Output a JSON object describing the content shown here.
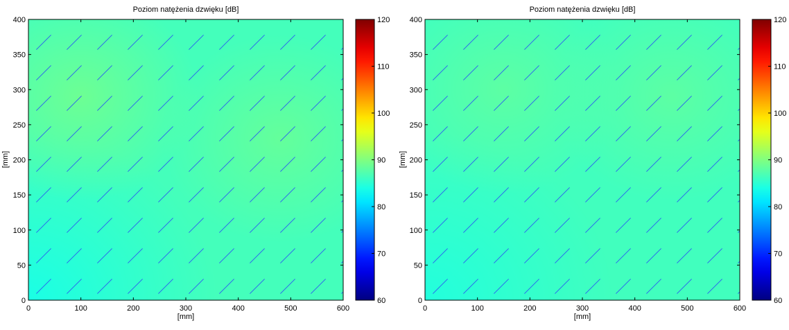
{
  "chart_data": [
    {
      "type": "heatmap",
      "title": "Poziom natężenia dzwięku [dB]",
      "xlabel": "[mm]",
      "ylabel": "[mm]",
      "xlim": [
        0,
        600
      ],
      "ylim": [
        0,
        400
      ],
      "xticks": [
        "0",
        "100",
        "200",
        "300",
        "400",
        "500",
        "600"
      ],
      "yticks": [
        "0",
        "50",
        "100",
        "150",
        "200",
        "250",
        "300",
        "350",
        "400"
      ],
      "colorbar": {
        "range": [
          60,
          120
        ],
        "ticks": [
          "60",
          "70",
          "80",
          "90",
          "100",
          "110",
          "120"
        ],
        "colormap": "jet"
      },
      "field": {
        "base_db": 86.5,
        "hotspots": [
          {
            "x": 100,
            "y": 290,
            "db": 89
          },
          {
            "x": 480,
            "y": 230,
            "db": 88.5
          }
        ],
        "corner_db": 84
      },
      "vectors": {
        "spacing_x": 44,
        "spacing_y": 44,
        "angle_deg": 45,
        "length": 30,
        "color": "#2b5ef0"
      }
    },
    {
      "type": "heatmap",
      "title": "Poziom natężenia dzwięku [dB]",
      "xlabel": "[mm]",
      "ylabel": "[mm]",
      "xlim": [
        0,
        600
      ],
      "ylim": [
        0,
        400
      ],
      "xticks": [
        "0",
        "100",
        "200",
        "300",
        "400",
        "500",
        "600"
      ],
      "yticks": [
        "0",
        "50",
        "100",
        "150",
        "200",
        "250",
        "300",
        "350",
        "400"
      ],
      "colorbar": {
        "range": [
          60,
          120
        ],
        "ticks": [
          "60",
          "70",
          "80",
          "90",
          "100",
          "110",
          "120"
        ],
        "colormap": "jet"
      },
      "field": {
        "base_db": 86.3,
        "hotspots": [
          {
            "x": 150,
            "y": 300,
            "db": 88
          },
          {
            "x": 470,
            "y": 290,
            "db": 88
          }
        ],
        "corner_db": 84.5
      },
      "vectors": {
        "spacing_x": 44,
        "spacing_y": 44,
        "angle_deg": 45,
        "length": 30,
        "color": "#2b5ef0"
      }
    }
  ]
}
